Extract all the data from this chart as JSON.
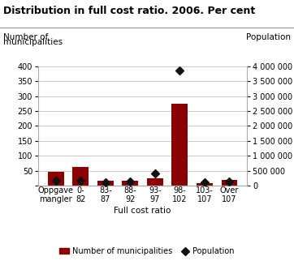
{
  "title": "Distribution in full cost ratio. 2006. Per cent",
  "categories": [
    "Oppgave\nmangler",
    "0-\n82",
    "83-\n87",
    "88-\n92",
    "93-\n97",
    "98-\n102",
    "103-\n107",
    "Over\n107"
  ],
  "bar_values": [
    46,
    61,
    17,
    15,
    25,
    275,
    7,
    18
  ],
  "population_values": [
    170000,
    170000,
    110000,
    120000,
    400000,
    3850000,
    100000,
    120000
  ],
  "bar_color": "#8B0000",
  "diamond_color": "#111111",
  "left_label_line1": "Number of",
  "left_label_line2": "municipalities",
  "right_label": "Population",
  "xlabel": "Full cost ratio",
  "ylim_left": [
    0,
    400
  ],
  "ylim_right": [
    0,
    4000000
  ],
  "yticks_left": [
    0,
    50,
    100,
    150,
    200,
    250,
    300,
    350,
    400
  ],
  "ytick_labels_left": [
    "",
    "50",
    "100",
    "150",
    "200",
    "250",
    "300",
    "350",
    "400"
  ],
  "yticks_right": [
    0,
    500000,
    1000000,
    1500000,
    2000000,
    2500000,
    3000000,
    3500000,
    4000000
  ],
  "ytick_labels_right": [
    "0",
    "500 000",
    "1 000 000",
    "1 500 000",
    "2 000 000",
    "2 500 000",
    "3 000 000",
    "3 500 000",
    "4 000 000"
  ],
  "legend_bar_label": "Number of municipalities",
  "legend_diamond_label": "Population",
  "background_color": "#ffffff",
  "grid_color": "#cccccc",
  "title_fontsize": 9,
  "axis_fontsize": 7,
  "label_fontsize": 7.5
}
